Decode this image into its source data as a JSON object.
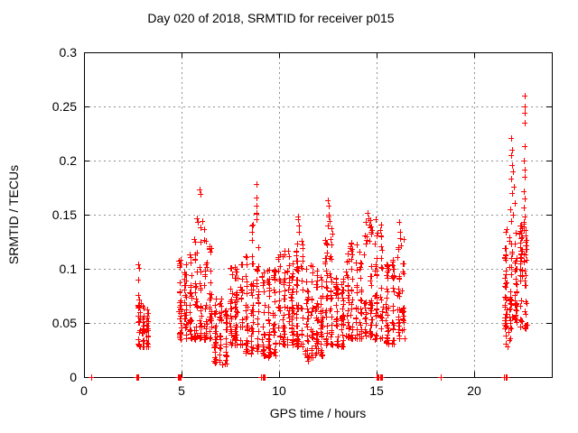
{
  "chart_data": {
    "type": "scatter",
    "title": "Day 020 of 2018, SRMTID for receiver p015",
    "xlabel": "GPS time / hours",
    "ylabel": "SRMTID / TECUs",
    "xlim": [
      0,
      24
    ],
    "ylim": [
      0,
      0.3
    ],
    "xticks": [
      0,
      5,
      10,
      15,
      20
    ],
    "xtick_labels": [
      "0",
      "5",
      "10",
      "15",
      "20"
    ],
    "yticks": [
      0,
      0.05,
      0.1,
      0.15,
      0.2,
      0.25,
      0.3
    ],
    "ytick_labels": [
      "0",
      "0.05",
      "0.1",
      "0.15",
      "0.2",
      "0.25",
      "0.3"
    ],
    "grid": true,
    "legend_position": "none",
    "marker": "plus",
    "marker_color": "#ff0000",
    "axis_color": "#000000",
    "grid_color": "#8c8c8c",
    "background_color": "#ffffff",
    "seed": 2018020,
    "zero_points_hours": [
      0.37,
      2.68,
      2.72,
      2.76,
      4.84,
      4.88,
      4.92,
      4.96,
      9.1,
      9.16,
      9.22,
      9.28,
      15.0,
      15.06,
      15.12,
      15.18,
      15.24,
      15.3,
      18.3,
      21.56,
      21.62,
      21.68
    ],
    "outlier_points": [
      [
        2.79,
        0.104
      ],
      [
        2.81,
        0.101
      ],
      [
        2.79,
        0.09
      ],
      [
        2.78,
        0.076
      ],
      [
        2.84,
        0.072
      ],
      [
        2.9,
        0.068
      ],
      [
        5.93,
        0.173
      ],
      [
        5.96,
        0.169
      ],
      [
        5.78,
        0.147
      ],
      [
        5.85,
        0.143
      ],
      [
        5.98,
        0.138
      ],
      [
        6.08,
        0.144
      ],
      [
        6.15,
        0.137
      ],
      [
        6.72,
        0.013
      ],
      [
        6.95,
        0.016
      ],
      [
        7.1,
        0.012
      ],
      [
        8.84,
        0.178
      ],
      [
        8.85,
        0.166
      ],
      [
        8.86,
        0.158
      ],
      [
        8.84,
        0.152
      ],
      [
        8.85,
        0.151
      ],
      [
        8.87,
        0.146
      ],
      [
        8.68,
        0.141
      ],
      [
        8.6,
        0.14
      ],
      [
        8.62,
        0.134
      ],
      [
        9.45,
        0.019
      ],
      [
        9.6,
        0.022
      ],
      [
        10.97,
        0.148
      ],
      [
        11.0,
        0.146
      ],
      [
        11.02,
        0.14
      ],
      [
        11.04,
        0.134
      ],
      [
        11.5,
        0.015
      ],
      [
        11.55,
        0.019
      ],
      [
        12.53,
        0.163
      ],
      [
        12.55,
        0.158
      ],
      [
        12.55,
        0.15
      ],
      [
        12.57,
        0.148
      ],
      [
        12.62,
        0.144
      ],
      [
        12.5,
        0.14
      ],
      [
        14.55,
        0.152
      ],
      [
        14.6,
        0.147
      ],
      [
        14.45,
        0.143
      ],
      [
        14.7,
        0.138
      ],
      [
        15.05,
        0.133
      ],
      [
        14.4,
        0.131
      ],
      [
        16.18,
        0.143
      ],
      [
        16.2,
        0.134
      ],
      [
        16.22,
        0.128
      ],
      [
        16.28,
        0.122
      ],
      [
        22.6,
        0.26
      ],
      [
        22.61,
        0.25
      ],
      [
        22.59,
        0.244
      ],
      [
        22.6,
        0.235
      ],
      [
        22.62,
        0.213
      ],
      [
        21.93,
        0.221
      ],
      [
        21.97,
        0.21
      ],
      [
        21.9,
        0.205
      ],
      [
        22.58,
        0.2
      ],
      [
        21.95,
        0.196
      ],
      [
        22.0,
        0.19
      ],
      [
        21.9,
        0.183
      ],
      [
        22.63,
        0.192
      ],
      [
        22.6,
        0.185
      ],
      [
        22.05,
        0.176
      ],
      [
        21.95,
        0.17
      ],
      [
        22.58,
        0.172
      ],
      [
        22.62,
        0.165
      ],
      [
        22.1,
        0.161
      ],
      [
        21.88,
        0.155
      ],
      [
        22.55,
        0.157
      ],
      [
        22.0,
        0.15
      ],
      [
        22.63,
        0.148
      ],
      [
        21.92,
        0.144
      ],
      [
        22.57,
        0.143
      ],
      [
        21.58,
        0.045
      ],
      [
        21.62,
        0.038
      ],
      [
        21.66,
        0.031
      ],
      [
        21.72,
        0.028
      ],
      [
        21.8,
        0.034
      ],
      [
        21.64,
        0.05
      ],
      [
        21.76,
        0.042
      ],
      [
        21.86,
        0.036
      ],
      [
        21.6,
        0.055
      ]
    ],
    "clusters": [
      {
        "t0": 2.72,
        "t1": 3.35,
        "n": 60,
        "vmin": 0.028,
        "vmax": 0.068,
        "bias": 1.3
      },
      {
        "t0": 4.8,
        "t1": 5.6,
        "n": 85,
        "vmin": 0.035,
        "vmax": 0.115,
        "bias": 1.6
      },
      {
        "t0": 5.6,
        "t1": 6.6,
        "n": 95,
        "vmin": 0.035,
        "vmax": 0.135,
        "bias": 1.7
      },
      {
        "t0": 6.6,
        "t1": 7.4,
        "n": 70,
        "vmin": 0.012,
        "vmax": 0.075,
        "bias": 1.2
      },
      {
        "t0": 7.4,
        "t1": 8.2,
        "n": 80,
        "vmin": 0.03,
        "vmax": 0.112,
        "bias": 1.5
      },
      {
        "t0": 8.2,
        "t1": 9.05,
        "n": 80,
        "vmin": 0.022,
        "vmax": 0.13,
        "bias": 1.6
      },
      {
        "t0": 9.05,
        "t1": 9.9,
        "n": 85,
        "vmin": 0.018,
        "vmax": 0.1,
        "bias": 1.4
      },
      {
        "t0": 9.9,
        "t1": 10.8,
        "n": 95,
        "vmin": 0.03,
        "vmax": 0.122,
        "bias": 1.5
      },
      {
        "t0": 10.8,
        "t1": 11.3,
        "n": 55,
        "vmin": 0.028,
        "vmax": 0.13,
        "bias": 1.6
      },
      {
        "t0": 11.3,
        "t1": 12.3,
        "n": 100,
        "vmin": 0.018,
        "vmax": 0.105,
        "bias": 1.4
      },
      {
        "t0": 12.3,
        "t1": 12.8,
        "n": 55,
        "vmin": 0.03,
        "vmax": 0.138,
        "bias": 1.6
      },
      {
        "t0": 12.8,
        "t1": 13.4,
        "n": 60,
        "vmin": 0.028,
        "vmax": 0.095,
        "bias": 1.4
      },
      {
        "t0": 13.4,
        "t1": 14.3,
        "n": 85,
        "vmin": 0.035,
        "vmax": 0.125,
        "bias": 1.5
      },
      {
        "t0": 14.3,
        "t1": 15.4,
        "n": 100,
        "vmin": 0.035,
        "vmax": 0.148,
        "bias": 1.6
      },
      {
        "t0": 15.4,
        "t1": 16.0,
        "n": 60,
        "vmin": 0.03,
        "vmax": 0.11,
        "bias": 1.5
      },
      {
        "t0": 16.0,
        "t1": 16.5,
        "n": 45,
        "vmin": 0.035,
        "vmax": 0.128,
        "bias": 1.6
      },
      {
        "t0": 21.5,
        "t1": 22.8,
        "n": 125,
        "vmin": 0.045,
        "vmax": 0.138,
        "bias": 1.2
      },
      {
        "t0": 22.3,
        "t1": 22.72,
        "n": 25,
        "vmin": 0.085,
        "vmax": 0.148,
        "bias": 1.0
      }
    ]
  }
}
